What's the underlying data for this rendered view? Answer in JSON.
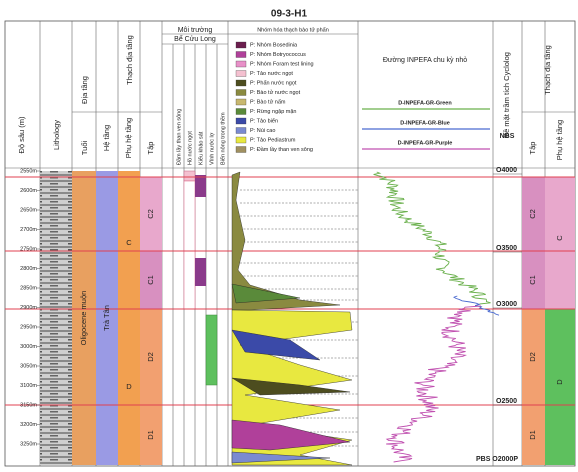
{
  "title": "09-3-H1",
  "headers": {
    "depth": "Độ sâu (m)",
    "lithology": "Lithology",
    "stratigraphy": "Địa tầng",
    "age": "Tuổi",
    "lithostratigraphy": "Thạch địa tầng",
    "formation": "Hệ tầng",
    "subformation": "Phụ hệ tầng",
    "unit": "Tập",
    "environment": "Môi trường",
    "basin": "Bể Cửu Long",
    "environment_columns": [
      "Đầm lầy than ven sông",
      "Hồ nước ngọt",
      "Kiểu khảo sát",
      "Vĩnh nước lợ",
      "Biển nông trong thềm"
    ],
    "palynology": "Nhóm hóa thạch bào tử phấn",
    "inpefa": "Đường INPEFA chu kỳ nhỏ",
    "cyclolog": "Bề mặt trầm tích Cyclolog",
    "nbs": "NBS",
    "right_lithostratigraphy": "Thạch địa tầng",
    "right_unit": "Tập",
    "right_subformation": "Phụ hệ tầng"
  },
  "palynology_legend": [
    {
      "label": "P: Nhóm Bosedinia",
      "color": "#6b1e4e"
    },
    {
      "label": "P: Nhóm Botryococcus",
      "color": "#b0409a"
    },
    {
      "label": "P: Nhóm Foram test lining",
      "color": "#e890c8"
    },
    {
      "label": "P: Tảo nước ngọt",
      "color": "#f4c0d0"
    },
    {
      "label": "P: Phấn nước ngọt",
      "color": "#4d4d1f"
    },
    {
      "label": "P: Bào tử nước ngọt",
      "color": "#8a8a40"
    },
    {
      "label": "P: Bào tử nấm",
      "color": "#c8b870"
    },
    {
      "label": "P: Rừng ngập mặn",
      "color": "#5a8a3a"
    },
    {
      "label": "P: Tảo biển",
      "color": "#3b4aa8"
    },
    {
      "label": "P: Núi cao",
      "color": "#7a8ad0"
    },
    {
      "label": "P: Tảo Pediastrum",
      "color": "#e8e840"
    },
    {
      "label": "P: Đầm lầy than ven sông",
      "color": "#a09060"
    }
  ],
  "inpefa_legend": [
    {
      "label": "D-INPEFA-GR-Green",
      "color": "#6ab04c"
    },
    {
      "label": "D-INPEFA-GR-Blue",
      "color": "#4a6ad0"
    },
    {
      "label": "D-INPEFA-GR-Purple",
      "color": "#c050b0"
    }
  ],
  "depth_ticks": [
    "2550m",
    "2600m",
    "2650m",
    "2700m",
    "2750m",
    "2800m",
    "2850m",
    "2900m",
    "2950m",
    "3000m",
    "3050m",
    "3100m",
    "3150m",
    "3200m",
    "3250m"
  ],
  "age": "Oligocene muộn",
  "formation": "Trà Tân",
  "subformations": [
    "C",
    "D"
  ],
  "units": [
    "C2",
    "C1",
    "D2",
    "D1"
  ],
  "surfaces": [
    "O4000",
    "O3500",
    "O3000",
    "O2500",
    "PBS O2000P"
  ]
}
